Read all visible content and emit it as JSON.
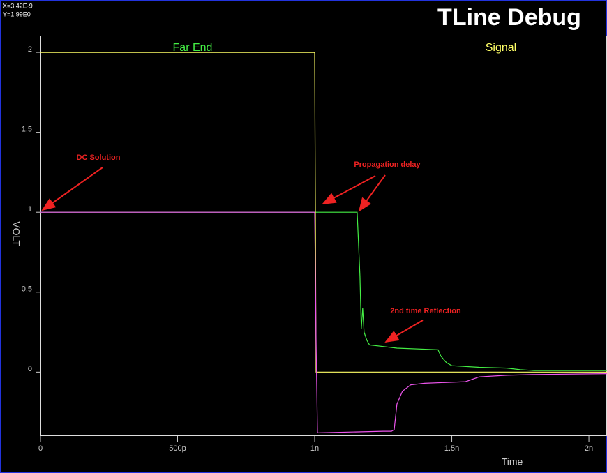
{
  "chart_data": {
    "type": "line",
    "title": "TLine Debug",
    "cursor": [
      "X=3.42E-9",
      "Y=1.99E0"
    ],
    "ylabel": "VOLT",
    "xlabel": "Time",
    "xlim": [
      0,
      2.066
    ],
    "ylim": [
      -0.4,
      2.105
    ],
    "xticks": [
      0,
      {
        "value": 0.5,
        "label": "500p"
      },
      {
        "value": 1,
        "label": "1n"
      },
      {
        "value": 1.5,
        "label": "1.5n"
      },
      {
        "value": 2,
        "label": "2n"
      }
    ],
    "yticks": [
      0,
      0.5,
      1,
      1.5,
      2
    ],
    "series": [
      {
        "name": "Far End",
        "color": "#44ee44",
        "x": [
          0,
          1.155,
          1.165,
          1.17,
          1.175,
          1.18,
          1.19,
          1.2,
          1.25,
          1.3,
          1.45,
          1.46,
          1.48,
          1.5,
          1.6,
          1.7,
          1.75,
          1.8,
          2.066
        ],
        "values": [
          1,
          1,
          0.6,
          0.27,
          0.4,
          0.25,
          0.2,
          0.17,
          0.16,
          0.15,
          0.14,
          0.1,
          0.06,
          0.04,
          0.03,
          0.025,
          0.015,
          0.01,
          0.01
        ]
      },
      {
        "name": "Signal",
        "color": "#ffff66",
        "x": [
          0,
          1.0,
          1.005,
          2.066
        ],
        "values": [
          2,
          2,
          0,
          0
        ]
      },
      {
        "color": "#ee55ee",
        "x": [
          0,
          1.0,
          1.005,
          1.01,
          1.25,
          1.28,
          1.29,
          1.3,
          1.32,
          1.35,
          1.4,
          1.55,
          1.6,
          1.7,
          1.8,
          2.066
        ],
        "values": [
          1,
          1,
          0.2,
          -0.38,
          -0.37,
          -0.37,
          -0.36,
          -0.2,
          -0.12,
          -0.08,
          -0.07,
          -0.06,
          -0.03,
          -0.02,
          -0.015,
          -0.01
        ]
      }
    ],
    "annotations": [
      "DC Solution",
      "Propagation delay",
      "2nd time Reflection"
    ]
  }
}
